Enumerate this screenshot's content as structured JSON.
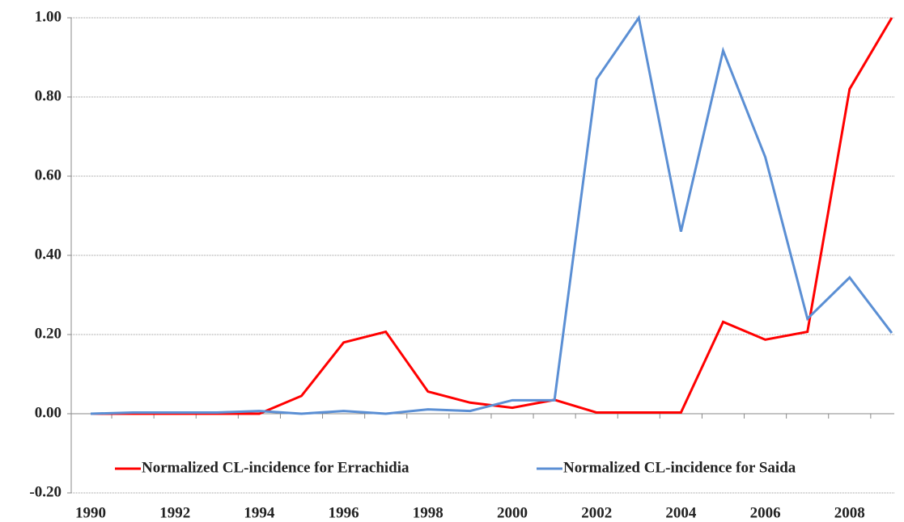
{
  "chart_data": {
    "type": "line",
    "categories": [
      "1990",
      null,
      "1992",
      null,
      "1994",
      null,
      "1996",
      null,
      "1998",
      null,
      "2000",
      null,
      "2002",
      null,
      "2004",
      null,
      "2006",
      null,
      "2008",
      null
    ],
    "series": [
      {
        "name": "Normalized CL-incidence for Errachidia",
        "color": "#ff0000",
        "values": [
          0,
          0,
          0,
          0,
          0,
          0.045,
          0.18,
          0.207,
          0.056,
          0.028,
          0.015,
          0.035,
          0.003,
          0.003,
          0.003,
          0.232,
          0.187,
          0.207,
          0.82,
          1.0
        ]
      },
      {
        "name": "Normalized CL-incidence for Saida",
        "color": "#5b8fd4",
        "values": [
          0,
          0.003,
          0.003,
          0.003,
          0.007,
          0,
          0.007,
          0,
          0.011,
          0.007,
          0.034,
          0.034,
          0.845,
          1.0,
          0.46,
          0.917,
          0.648,
          0.24,
          0.344,
          0.204
        ]
      }
    ],
    "ylim": [
      -0.2,
      1.0
    ],
    "yticks": [
      {
        "value": -0.2,
        "label": "-0.20"
      },
      {
        "value": 0,
        "label": "0.00"
      },
      {
        "value": 0.2,
        "label": "0.20"
      },
      {
        "value": 0.4,
        "label": "0.40"
      },
      {
        "value": 0.6,
        "label": "0.60"
      },
      {
        "value": 0.8,
        "label": "0.80"
      },
      {
        "value": 1.0,
        "label": "1.00"
      }
    ],
    "grid": true,
    "legend": "lower center"
  }
}
